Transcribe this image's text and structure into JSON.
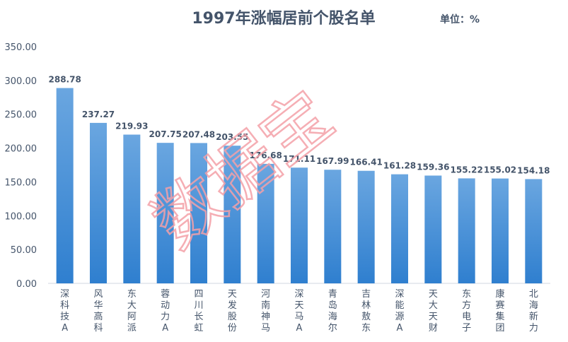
{
  "chart_data": {
    "type": "bar",
    "title": "1997年涨幅居前个股名单",
    "unit_label": "单位：%",
    "categories": [
      "深科技A",
      "风华高科",
      "东大阿派",
      "蓉动力A",
      "四川长虹",
      "天发股份",
      "河南神马",
      "深天马A",
      "青岛海尔",
      "吉林敖东",
      "深能源A",
      "天大天财",
      "东方电子",
      "康赛集团",
      "北海新力"
    ],
    "values": [
      288.78,
      237.27,
      219.93,
      207.75,
      207.48,
      203.55,
      176.68,
      171.11,
      167.99,
      166.41,
      161.28,
      159.36,
      155.22,
      155.02,
      154.18
    ],
    "data_labels": [
      "288.78",
      "237.27",
      "219.93",
      "207.75",
      "207.48",
      "203.55",
      "176.68",
      "171.11",
      "167.99",
      "166.41",
      "161.28",
      "159.36",
      "155.22",
      "155.02",
      "154.18"
    ],
    "ylim": [
      0,
      350
    ],
    "yticks": [
      "0.00",
      "50.00",
      "100.00",
      "150.00",
      "200.00",
      "250.00",
      "300.00",
      "350.00"
    ],
    "grid": false,
    "legend": "none",
    "bar_color_top": "#6aa6e0",
    "bar_color_bottom": "#2f7fcf",
    "text_color": "#44546a",
    "watermark": "数据宝",
    "watermark_color": "#f4a0a8"
  }
}
